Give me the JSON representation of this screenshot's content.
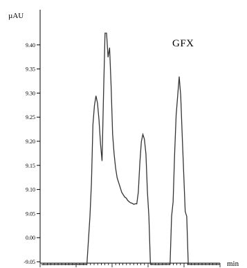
{
  "chart_data": {
    "type": "line",
    "ylabel": "µAU",
    "xlabel": "min",
    "y_ticks": [
      "-9.05",
      "0.00",
      "9.05",
      "9.10",
      "9.15",
      "9.20",
      "9.25",
      "9.30",
      "9.35",
      "9.40"
    ],
    "annotation": "GFX",
    "grid": false,
    "x_tick_labels_visible": false,
    "series": [
      {
        "values": [
          [
            0.0,
            -9.055
          ],
          [
            0.02,
            -9.052
          ],
          [
            0.04,
            -9.045
          ],
          [
            0.06,
            -9.038
          ],
          [
            0.08,
            -9.03
          ],
          [
            0.1,
            -9.026
          ],
          [
            0.12,
            -9.024
          ],
          [
            0.14,
            -9.025
          ],
          [
            0.16,
            -9.022
          ],
          [
            0.18,
            -9.02
          ],
          [
            0.2,
            -9.018
          ],
          [
            0.22,
            -9.021
          ],
          [
            0.24,
            -9.016
          ],
          [
            0.26,
            -9.014
          ],
          [
            0.28,
            -9.017
          ],
          [
            0.3,
            -9.012
          ],
          [
            0.32,
            -9.01
          ],
          [
            0.34,
            -9.013
          ],
          [
            0.36,
            -9.008
          ],
          [
            0.38,
            -9.011
          ],
          [
            0.4,
            -9.006
          ],
          [
            0.42,
            -9.009
          ],
          [
            0.44,
            -9.005
          ],
          [
            0.46,
            -9.008
          ],
          [
            0.48,
            -9.004
          ],
          [
            0.5,
            -9.007
          ],
          [
            0.52,
            -9.003
          ],
          [
            0.54,
            -9.001
          ],
          [
            0.56,
            -9.005
          ],
          [
            0.58,
            -9.003
          ],
          [
            0.6,
            -9.0
          ],
          [
            0.62,
            0.01
          ],
          [
            0.64,
            9.0
          ],
          [
            0.66,
            9.12
          ],
          [
            0.68,
            9.24
          ],
          [
            0.7,
            9.28
          ],
          [
            0.72,
            9.3
          ],
          [
            0.74,
            9.285
          ],
          [
            0.76,
            9.25
          ],
          [
            0.78,
            9.2
          ],
          [
            0.8,
            9.165
          ],
          [
            0.82,
            9.3
          ],
          [
            0.84,
            9.43
          ],
          [
            0.86,
            9.43
          ],
          [
            0.88,
            9.38
          ],
          [
            0.9,
            9.4
          ],
          [
            0.92,
            9.32
          ],
          [
            0.94,
            9.22
          ],
          [
            0.96,
            9.18
          ],
          [
            0.98,
            9.15
          ],
          [
            1.0,
            9.13
          ],
          [
            1.02,
            9.12
          ],
          [
            1.04,
            9.11
          ],
          [
            1.06,
            9.1
          ],
          [
            1.08,
            9.095
          ],
          [
            1.1,
            9.09
          ],
          [
            1.12,
            9.088
          ],
          [
            1.14,
            9.083
          ],
          [
            1.16,
            9.08
          ],
          [
            1.18,
            9.078
          ],
          [
            1.2,
            9.077
          ],
          [
            1.22,
            9.075
          ],
          [
            1.24,
            9.076
          ],
          [
            1.26,
            9.076
          ],
          [
            1.28,
            9.1
          ],
          [
            1.3,
            9.16
          ],
          [
            1.32,
            9.205
          ],
          [
            1.34,
            9.22
          ],
          [
            1.36,
            9.21
          ],
          [
            1.38,
            9.18
          ],
          [
            1.4,
            9.1
          ],
          [
            1.42,
            9.01
          ],
          [
            1.44,
            -9.008
          ],
          [
            1.46,
            -9.028
          ],
          [
            1.48,
            -9.035
          ],
          [
            1.5,
            -9.037
          ],
          [
            1.52,
            -9.038
          ],
          [
            1.54,
            -9.038
          ],
          [
            1.56,
            -9.038
          ],
          [
            1.58,
            -9.037
          ],
          [
            1.6,
            -9.036
          ],
          [
            1.62,
            -9.035
          ],
          [
            1.64,
            -9.033
          ],
          [
            1.66,
            -9.03
          ],
          [
            1.68,
            -9.024
          ],
          [
            1.7,
            -9.01
          ],
          [
            1.72,
            9.0
          ],
          [
            1.74,
            9.08
          ],
          [
            1.76,
            9.18
          ],
          [
            1.78,
            9.26
          ],
          [
            1.8,
            9.3
          ],
          [
            1.82,
            9.34
          ],
          [
            1.84,
            9.3
          ],
          [
            1.86,
            9.22
          ],
          [
            1.88,
            9.14
          ],
          [
            1.9,
            9.06
          ],
          [
            1.92,
            9.01
          ],
          [
            1.94,
            -9.005
          ],
          [
            1.96,
            -9.015
          ],
          [
            1.98,
            -9.022
          ],
          [
            2.0,
            -9.026
          ],
          [
            2.04,
            -9.029
          ],
          [
            2.08,
            -9.03
          ],
          [
            2.12,
            -9.031
          ],
          [
            2.16,
            -9.032
          ],
          [
            2.2,
            -9.032
          ],
          [
            2.24,
            -9.033
          ],
          [
            2.28,
            -9.033
          ],
          [
            2.32,
            -9.033
          ],
          [
            2.36,
            -9.032
          ]
        ]
      }
    ]
  }
}
